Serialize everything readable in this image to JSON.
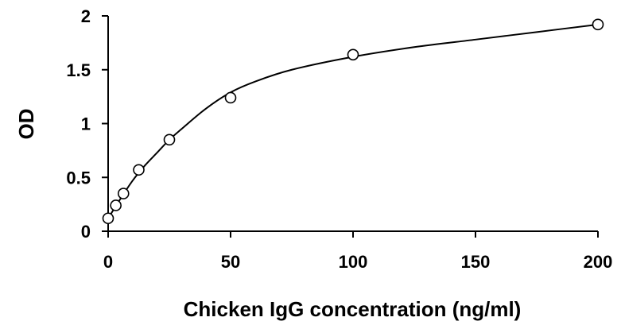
{
  "chart_data": {
    "type": "scatter",
    "title": "",
    "xlabel": "Chicken IgG concentration (ng/ml)",
    "ylabel": "OD",
    "xlim": [
      0,
      200
    ],
    "ylim": [
      0,
      2
    ],
    "xticks": [
      0,
      50,
      100,
      150,
      200
    ],
    "yticks": [
      0,
      0.5,
      1,
      1.5,
      2
    ],
    "xtick_labels": [
      "0",
      "50",
      "100",
      "150",
      "200"
    ],
    "ytick_labels": [
      "0",
      "0.5",
      "1",
      "1.5",
      "2"
    ],
    "grid": false,
    "legend": "none",
    "series": [
      {
        "values": [
          {
            "x": 0,
            "y": 0.12
          },
          {
            "x": 3.13,
            "y": 0.24
          },
          {
            "x": 6.25,
            "y": 0.35
          },
          {
            "x": 12.5,
            "y": 0.57
          },
          {
            "x": 25,
            "y": 0.85
          },
          {
            "x": 50,
            "y": 1.24
          },
          {
            "x": 100,
            "y": 1.64
          },
          {
            "x": 200,
            "y": 1.92
          }
        ]
      }
    ],
    "fit_curve": {
      "style": "solid black line",
      "points": [
        {
          "x": 0,
          "y": 0.12
        },
        {
          "x": 5,
          "y": 0.3
        },
        {
          "x": 10,
          "y": 0.47
        },
        {
          "x": 15,
          "y": 0.61
        },
        {
          "x": 20,
          "y": 0.73
        },
        {
          "x": 25,
          "y": 0.85
        },
        {
          "x": 30,
          "y": 0.95
        },
        {
          "x": 40,
          "y": 1.14
        },
        {
          "x": 50,
          "y": 1.29
        },
        {
          "x": 60,
          "y": 1.39
        },
        {
          "x": 75,
          "y": 1.5
        },
        {
          "x": 100,
          "y": 1.62
        },
        {
          "x": 125,
          "y": 1.71
        },
        {
          "x": 150,
          "y": 1.78
        },
        {
          "x": 175,
          "y": 1.85
        },
        {
          "x": 200,
          "y": 1.92
        }
      ]
    }
  }
}
